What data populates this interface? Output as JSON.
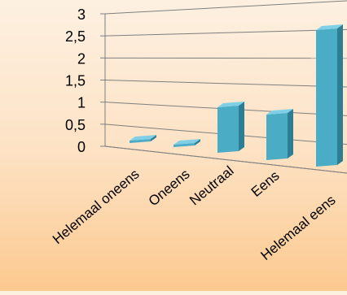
{
  "chart_data": {
    "type": "bar",
    "title": "",
    "xlabel": "",
    "ylabel": "",
    "categories": [
      "Helemaal oneens",
      "Oneens",
      "Neutraal",
      "Eens",
      "Helemaal eens"
    ],
    "values": [
      0,
      0,
      1,
      1,
      3
    ],
    "ylim": [
      0,
      3
    ],
    "y_ticks": [
      "0",
      "0,5",
      "1",
      "1,5",
      "2",
      "2,5",
      "3"
    ],
    "grid": true,
    "legend": "none",
    "bar_color": "#4bacc6",
    "bar_side_color": "#2e7e93",
    "bar_top_color": "#7fd0e6",
    "gridline_color": "#7f7f7f"
  }
}
